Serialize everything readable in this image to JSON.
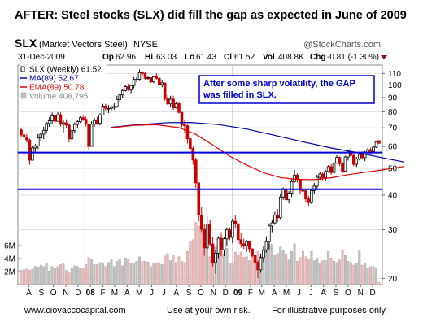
{
  "headline": "AFTER:  Steel stocks (SLX) did fill the gap as expected in June of 2009",
  "footer": {
    "left": "www.ciovaccocapital.com",
    "middle": "Use at your own risk.",
    "right": "For illustrative purposes only."
  },
  "colors": {
    "ma": "#0000aa",
    "ema": "#e00000",
    "gap_line": "#0000dd",
    "price": "#000000",
    "down_bar": "#cc0000",
    "volume_up": "#c0c0c0",
    "volume_down": "#f2b6b6",
    "annotation_border": "#0000cc",
    "annotation_text": "#0000cc"
  },
  "chart_data": {
    "type": "candlestick",
    "ticker": "SLX",
    "name": "(Market Vectors Steel)",
    "exchange": "NYSE",
    "watermark": "@StockCharts.com",
    "date": "31-Dec-2009",
    "quote": {
      "open_label": "Op",
      "open": "62.96",
      "high_label": "Hi",
      "high": "63.03",
      "low_label": "Lo",
      "low": "61.43",
      "close_label": "Cl",
      "close": "61.52",
      "volume_label": "Vol",
      "volume": "408.8K",
      "change_label": "Chg",
      "change": "-0.81 (-1.30%)"
    },
    "legend": [
      {
        "label": "SLX (Weekly) 61.52",
        "color": "#000000"
      },
      {
        "label": "MA(89) 52.67",
        "color": "#0000aa"
      },
      {
        "label": "EMA(89) 50.78",
        "color": "#e00000"
      },
      {
        "label": "Volume 408,795",
        "color": "#888888"
      }
    ],
    "annotation": "After some sharp volatility, the GAP was filled in SLX.",
    "y_scale": "log",
    "y_ticks": [
      "110",
      "100",
      "90",
      "80",
      "70",
      "60",
      "50",
      "40",
      "30",
      "20"
    ],
    "ylim": [
      19,
      118
    ],
    "volume_ticks": [
      "6M",
      "4M",
      "2M"
    ],
    "volume_ylim": [
      0,
      12.5
    ],
    "x_ticks": [
      "A",
      "S",
      "O",
      "N",
      "D",
      "08",
      "F",
      "M",
      "A",
      "M",
      "J",
      "J",
      "A",
      "S",
      "O",
      "N",
      "D",
      "09",
      "F",
      "M",
      "A",
      "M",
      "J",
      "J",
      "A",
      "S",
      "O",
      "N",
      "D"
    ],
    "x_range": [
      "2007-08",
      "2009-12"
    ],
    "gap_lines": [
      57,
      42
    ],
    "weeks": [
      [
        "2007-07-27",
        68.87,
        70.2,
        64.9,
        66.0,
        2.2
      ],
      [
        "2007-08-03",
        66.0,
        68.06,
        63.41,
        64.84,
        2.3
      ],
      [
        "2007-08-10",
        64.84,
        66.48,
        61.89,
        63.29,
        2.4
      ],
      [
        "2007-08-17",
        63.29,
        64.08,
        51.47,
        53.47,
        2.2
      ],
      [
        "2007-08-24",
        53.47,
        60.57,
        53.47,
        59.23,
        2.4
      ],
      [
        "2007-08-31",
        59.23,
        61.15,
        57.29,
        60.28,
        2.8
      ],
      [
        "2007-09-07",
        60.28,
        66.47,
        58.7,
        64.31,
        2.7
      ],
      [
        "2007-09-14",
        64.31,
        67.59,
        62.32,
        66.44,
        3.0
      ],
      [
        "2007-09-21",
        66.44,
        70.64,
        63.76,
        68.55,
        2.8
      ],
      [
        "2007-09-28",
        68.55,
        73.66,
        66.92,
        72.61,
        3.2
      ],
      [
        "2007-10-05",
        72.61,
        76.5,
        70.56,
        74.21,
        2.1
      ],
      [
        "2007-10-12",
        74.21,
        79.52,
        72.5,
        77.36,
        2.8
      ],
      [
        "2007-10-19",
        77.36,
        79.51,
        72.91,
        73.92,
        2.6
      ],
      [
        "2007-10-26",
        73.92,
        79.75,
        73.92,
        78.08,
        2.8
      ],
      [
        "2007-11-02",
        78.08,
        79.6,
        70.77,
        72.08,
        3.1
      ],
      [
        "2007-11-09",
        72.08,
        74.44,
        67.41,
        72.99,
        3.2
      ],
      [
        "2007-11-16",
        72.99,
        75.21,
        69.57,
        71.62,
        2.2
      ],
      [
        "2007-11-23",
        71.62,
        72.07,
        62.04,
        63.86,
        1.8
      ],
      [
        "2007-11-30",
        63.86,
        69.7,
        62.07,
        68.39,
        2.6
      ],
      [
        "2007-12-07",
        68.39,
        73.35,
        66.96,
        72.0,
        2.9
      ],
      [
        "2007-12-14",
        72.0,
        74.8,
        69.72,
        73.69,
        2.8
      ],
      [
        "2007-12-21",
        73.69,
        77.11,
        72.89,
        76.17,
        2.6
      ],
      [
        "2007-12-28",
        76.17,
        77.51,
        74.17,
        75.12,
        2.5
      ],
      [
        "2008-01-04",
        75.12,
        76.86,
        70.68,
        72.17,
        3.1
      ],
      [
        "2008-01-11",
        72.17,
        72.36,
        58.44,
        59.97,
        4.2
      ],
      [
        "2008-01-18",
        59.97,
        74.01,
        59.97,
        72.14,
        3.9
      ],
      [
        "2008-01-25",
        72.14,
        76.12,
        70.58,
        74.46,
        3.1
      ],
      [
        "2008-02-01",
        74.46,
        76.69,
        71.69,
        72.69,
        3.1
      ],
      [
        "2008-02-08",
        72.69,
        79.19,
        71.46,
        77.91,
        3.4
      ],
      [
        "2008-02-15",
        77.91,
        85.47,
        77.91,
        83.92,
        3.2
      ],
      [
        "2008-02-22",
        83.92,
        85.49,
        80.33,
        82.28,
        2.8
      ],
      [
        "2008-02-29",
        82.28,
        84.66,
        79.21,
        82.29,
        3.4
      ],
      [
        "2008-03-07",
        82.29,
        84.28,
        80.39,
        83.21,
        3.8
      ],
      [
        "2008-03-14",
        83.21,
        85.86,
        81.41,
        83.6,
        2.8
      ],
      [
        "2008-03-21",
        83.6,
        91.44,
        82.61,
        88.54,
        3.6
      ],
      [
        "2008-03-28",
        88.54,
        93.24,
        87.35,
        92.08,
        4.0
      ],
      [
        "2008-04-04",
        92.08,
        96.86,
        89.93,
        95.48,
        2.9
      ],
      [
        "2008-04-11",
        95.48,
        99.75,
        94.66,
        98.59,
        4.1
      ],
      [
        "2008-04-18",
        98.59,
        100.91,
        95.25,
        96.13,
        3.9
      ],
      [
        "2008-04-25",
        96.13,
        100.48,
        93.43,
        99.52,
        3.3
      ],
      [
        "2008-05-02",
        99.52,
        106.7,
        97.26,
        104.66,
        3.2
      ],
      [
        "2008-05-09",
        104.66,
        106.94,
        102.28,
        104.82,
        3.6
      ],
      [
        "2008-05-16",
        104.82,
        113.7,
        103.28,
        110.78,
        4.3
      ],
      [
        "2008-05-23",
        110.78,
        112.35,
        108.09,
        110.17,
        3.6
      ],
      [
        "2008-05-30",
        110.17,
        110.91,
        103.88,
        105.67,
        3.6
      ],
      [
        "2008-06-06",
        105.67,
        107.52,
        104.53,
        106.3,
        3.5
      ],
      [
        "2008-06-13",
        106.3,
        106.47,
        101.68,
        102.58,
        2.8
      ],
      [
        "2008-06-20",
        102.58,
        108.18,
        101.48,
        107.11,
        3.2
      ],
      [
        "2008-06-27",
        107.11,
        110.29,
        103.76,
        105.73,
        3.3
      ],
      [
        "2008-07-04",
        105.73,
        106.43,
        99.45,
        100.37,
        3.4
      ],
      [
        "2008-07-11",
        100.37,
        104.04,
        98.02,
        101.74,
        3.1
      ],
      [
        "2008-07-18",
        101.74,
        102.02,
        87.62,
        89.28,
        4.4
      ],
      [
        "2008-07-25",
        89.28,
        91.99,
        84.7,
        85.39,
        4.8
      ],
      [
        "2008-08-01",
        85.39,
        91.45,
        83.11,
        88.84,
        3.7
      ],
      [
        "2008-08-08",
        88.84,
        91.41,
        81.19,
        82.66,
        4.5
      ],
      [
        "2008-08-15",
        82.66,
        87.02,
        82.26,
        85.57,
        3.4
      ],
      [
        "2008-08-22",
        85.57,
        86.48,
        78.84,
        79.59,
        4.3
      ],
      [
        "2008-08-29",
        79.59,
        79.85,
        70.33,
        71.78,
        3.6
      ],
      [
        "2008-09-05",
        71.78,
        74.95,
        67.21,
        71.28,
        3.4
      ],
      [
        "2008-09-12",
        71.28,
        71.88,
        61.45,
        63.91,
        5.1
      ],
      [
        "2008-09-19",
        63.91,
        65.02,
        57.44,
        58.97,
        6.7
      ],
      [
        "2008-09-26",
        58.97,
        59.89,
        51.51,
        53.5,
        6.9
      ],
      [
        "2008-10-03",
        53.5,
        54.59,
        42.49,
        44.29,
        9.6
      ],
      [
        "2008-10-10",
        44.29,
        44.29,
        32.17,
        33.82,
        9.0
      ],
      [
        "2008-10-17",
        33.82,
        36.15,
        29.41,
        30.06,
        8.6
      ],
      [
        "2008-10-24",
        30.06,
        31.32,
        24.16,
        25.79,
        7.4
      ],
      [
        "2008-10-31",
        25.79,
        33.56,
        25.53,
        31.48,
        6.1
      ],
      [
        "2008-11-07",
        31.48,
        32.63,
        26.09,
        26.63,
        4.3
      ],
      [
        "2008-11-14",
        26.63,
        28.22,
        22.09,
        22.81,
        5.6
      ],
      [
        "2008-11-21",
        22.81,
        25.43,
        20.81,
        24.67,
        5.8
      ],
      [
        "2008-11-28",
        24.67,
        28.39,
        23.69,
        27.94,
        6.1
      ],
      [
        "2008-12-05",
        27.94,
        29.35,
        24.04,
        25.37,
        5.5
      ],
      [
        "2008-12-12",
        25.37,
        28.11,
        24.09,
        27.8,
        4.7
      ],
      [
        "2008-12-19",
        27.8,
        30.56,
        26.13,
        29.97,
        5.6
      ],
      [
        "2008-12-26",
        29.97,
        30.57,
        27.48,
        28.12,
        3.3
      ],
      [
        "2009-01-02",
        28.12,
        32.93,
        26.81,
        32.18,
        3.3
      ],
      [
        "2009-01-09",
        32.18,
        33.94,
        30.49,
        31.53,
        5.0
      ],
      [
        "2009-01-16",
        31.53,
        31.53,
        26.78,
        27.59,
        4.5
      ],
      [
        "2009-01-23",
        27.59,
        29.14,
        25.84,
        26.67,
        5.0
      ],
      [
        "2009-01-30",
        26.67,
        27.85,
        25.59,
        26.28,
        4.2
      ],
      [
        "2009-02-06",
        26.28,
        27.53,
        24.97,
        27.17,
        4.3
      ],
      [
        "2009-02-13",
        27.17,
        27.33,
        24.82,
        25.58,
        3.7
      ],
      [
        "2009-02-20",
        25.58,
        25.68,
        23.83,
        24.2,
        5.3
      ],
      [
        "2009-02-27",
        24.2,
        24.5,
        21.45,
        22.9,
        3.4
      ],
      [
        "2009-03-06",
        22.9,
        23.26,
        20.04,
        21.49,
        5.1
      ],
      [
        "2009-03-13",
        21.49,
        24.59,
        20.97,
        23.78,
        4.3
      ],
      [
        "2009-03-20",
        23.78,
        26.27,
        22.88,
        25.26,
        5.4
      ],
      [
        "2009-03-27",
        25.26,
        28.37,
        24.78,
        27.16,
        5.1
      ],
      [
        "2009-04-03",
        27.16,
        31.62,
        25.47,
        30.95,
        6.2
      ],
      [
        "2009-04-10",
        30.95,
        32.71,
        29.39,
        31.75,
        6.2
      ],
      [
        "2009-04-17",
        31.75,
        34.76,
        31.26,
        33.91,
        4.6
      ],
      [
        "2009-04-24",
        33.91,
        35.61,
        31.93,
        33.15,
        4.8
      ],
      [
        "2009-05-01",
        33.15,
        40.57,
        32.74,
        39.37,
        5.8
      ],
      [
        "2009-05-08",
        39.37,
        42.63,
        38.46,
        41.96,
        5.2
      ],
      [
        "2009-05-15",
        41.96,
        42.93,
        37.64,
        38.48,
        4.7
      ],
      [
        "2009-05-22",
        38.48,
        41.3,
        37.29,
        40.66,
        3.8
      ],
      [
        "2009-05-29",
        40.66,
        45.77,
        39.35,
        44.76,
        5.1
      ],
      [
        "2009-06-05",
        44.76,
        49.36,
        44.38,
        47.26,
        6.3
      ],
      [
        "2009-06-12",
        47.26,
        48.01,
        44.45,
        45.65,
        3.6
      ],
      [
        "2009-06-19",
        45.65,
        45.71,
        40.24,
        41.59,
        4.2
      ],
      [
        "2009-06-26",
        41.59,
        42.41,
        38.31,
        41.46,
        5.1
      ],
      [
        "2009-07-03",
        41.46,
        41.9,
        37.88,
        38.74,
        4.3
      ],
      [
        "2009-07-10",
        38.74,
        39.69,
        36.67,
        37.57,
        4.0
      ],
      [
        "2009-07-17",
        37.57,
        42.28,
        37.22,
        41.51,
        5.1
      ],
      [
        "2009-07-24",
        41.51,
        44.28,
        40.43,
        43.1,
        3.7
      ],
      [
        "2009-07-31",
        43.1,
        47.35,
        42.16,
        46.38,
        4.1
      ],
      [
        "2009-08-07",
        46.38,
        48.6,
        45.44,
        47.65,
        3.3
      ],
      [
        "2009-08-14",
        47.65,
        48.41,
        45.22,
        46.29,
        3.7
      ],
      [
        "2009-08-21",
        46.29,
        49.48,
        45.07,
        48.7,
        3.7
      ],
      [
        "2009-08-28",
        48.7,
        51.29,
        48.2,
        50.71,
        5.1
      ],
      [
        "2009-09-04",
        50.71,
        51.81,
        47.34,
        48.25,
        4.1
      ],
      [
        "2009-09-11",
        48.25,
        53.35,
        47.52,
        52.29,
        3.6
      ],
      [
        "2009-09-18",
        52.29,
        55.76,
        51.87,
        54.72,
        3.4
      ],
      [
        "2009-09-25",
        54.72,
        55.16,
        50.9,
        52.01,
        3.8
      ],
      [
        "2009-10-02",
        52.01,
        52.91,
        48.06,
        48.79,
        5.2
      ],
      [
        "2009-10-09",
        48.79,
        55.51,
        48.79,
        54.93,
        4.5
      ],
      [
        "2009-10-16",
        54.93,
        58.47,
        53.31,
        57.43,
        3.6
      ],
      [
        "2009-10-23",
        57.43,
        59.36,
        54.71,
        55.62,
        3.4
      ],
      [
        "2009-10-30",
        55.62,
        56.52,
        50.87,
        51.69,
        3.0
      ],
      [
        "2009-11-06",
        51.69,
        54.95,
        50.57,
        54.09,
        3.3
      ],
      [
        "2009-11-13",
        54.09,
        57.29,
        53.37,
        56.07,
        5.2
      ],
      [
        "2009-11-20",
        56.07,
        57.48,
        53.68,
        54.62,
        3.0
      ],
      [
        "2009-11-27",
        54.62,
        57.74,
        53.08,
        56.9,
        3.3
      ],
      [
        "2009-12-04",
        56.9,
        59.3,
        56.34,
        58.34,
        2.6
      ],
      [
        "2009-12-11",
        58.34,
        59.4,
        56.32,
        57.51,
        2.8
      ],
      [
        "2009-12-18",
        57.51,
        60.37,
        57.17,
        59.62,
        2.8
      ],
      [
        "2009-12-25",
        59.62,
        62.73,
        59.2,
        62.33,
        2.6
      ],
      [
        "2009-12-31",
        62.96,
        63.03,
        61.43,
        61.52,
        0.4
      ]
    ],
    "ma89": [
      [
        32,
        70.3
      ],
      [
        40,
        71.7
      ],
      [
        52,
        73.1
      ],
      [
        60,
        73.2
      ],
      [
        70,
        71.9
      ],
      [
        80,
        69.3
      ],
      [
        90,
        65.8
      ],
      [
        100,
        62.3
      ],
      [
        110,
        59.2
      ],
      [
        120,
        56.8
      ],
      [
        130,
        54.1
      ],
      [
        136,
        52.67
      ]
    ],
    "ema89": [
      [
        32,
        70.0
      ],
      [
        40,
        71.5
      ],
      [
        48,
        71.8
      ],
      [
        56,
        70.1
      ],
      [
        62,
        66.3
      ],
      [
        68,
        60.7
      ],
      [
        74,
        55.3
      ],
      [
        80,
        51.4
      ],
      [
        86,
        48.2
      ],
      [
        92,
        46.3
      ],
      [
        98,
        45.6
      ],
      [
        104,
        45.5
      ],
      [
        110,
        46.2
      ],
      [
        116,
        47.4
      ],
      [
        122,
        48.4
      ],
      [
        128,
        49.3
      ],
      [
        136,
        50.78
      ]
    ]
  }
}
